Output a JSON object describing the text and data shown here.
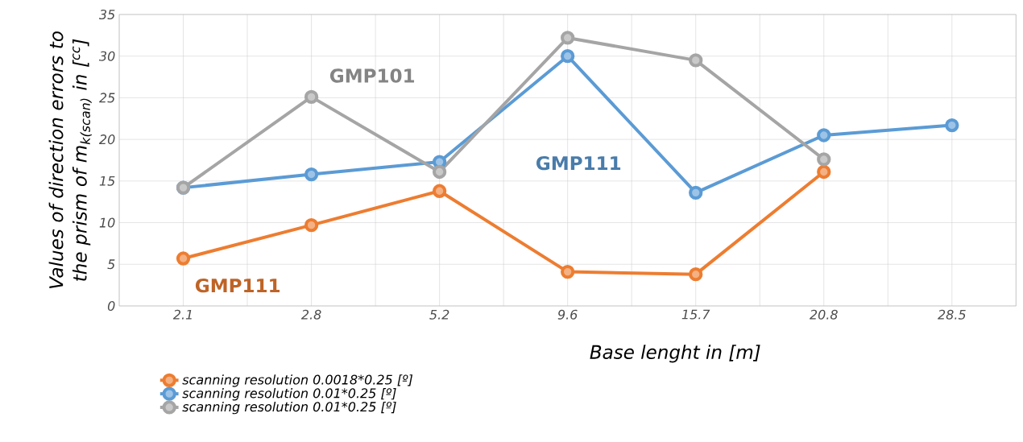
{
  "chart_data": {
    "type": "line",
    "xlabel": "Base lenght in [m]",
    "ylabel": "Values of direction errors to the prism of m$_{k(scan)}$ in [$^{cc}$]",
    "categories": [
      "2.1",
      "2.8",
      "5.2",
      "9.6",
      "15.7",
      "20.8",
      "28.5"
    ],
    "series": [
      {
        "name": "scanning resolution 0.0018*0.25 [º]",
        "color": "#ed7d31",
        "values": [
          5.7,
          9.7,
          13.8,
          4.1,
          3.8,
          16.1,
          null
        ]
      },
      {
        "name": "scanning resolution 0.01*0.25 [º]",
        "color": "#5b9bd5",
        "values": [
          14.2,
          15.8,
          17.3,
          30.0,
          13.6,
          20.5,
          21.7
        ]
      },
      {
        "name": "scanning resolution 0.01*0.25 [º]",
        "color": "#a5a5a5",
        "values": [
          14.2,
          25.1,
          16.1,
          32.2,
          29.5,
          17.6,
          null
        ]
      }
    ],
    "annotations": [
      "GMP101",
      "GMP111",
      "GMP111"
    ],
    "ylim": [
      0,
      35
    ],
    "yticks": [
      0,
      5,
      10,
      15,
      20,
      25,
      30,
      35
    ],
    "grid": true,
    "legend": "bottom left",
    "marker": "circle",
    "line_style": "solid"
  }
}
